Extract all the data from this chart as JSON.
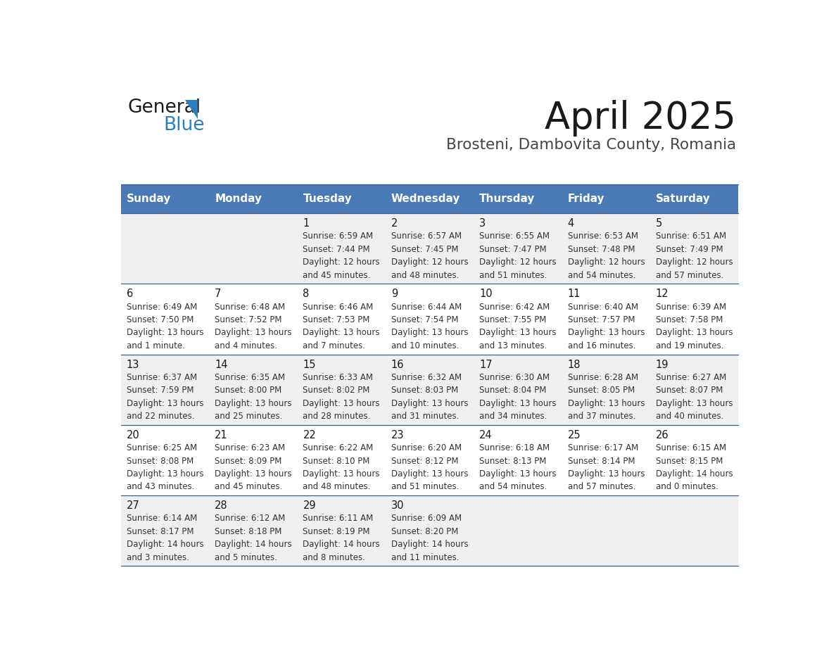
{
  "title": "April 2025",
  "subtitle": "Brosteni, Dambovita County, Romania",
  "header_bg": "#4a7ab5",
  "header_text": "#ffffff",
  "weekdays": [
    "Sunday",
    "Monday",
    "Tuesday",
    "Wednesday",
    "Thursday",
    "Friday",
    "Saturday"
  ],
  "row_bg_odd": "#efefef",
  "row_bg_even": "#ffffff",
  "cell_border": "#3a6090",
  "days": [
    {
      "day": 1,
      "col": 2,
      "row": 0,
      "sunrise": "6:59 AM",
      "sunset": "7:44 PM",
      "dl1": "Daylight: 12 hours",
      "dl2": "and 45 minutes."
    },
    {
      "day": 2,
      "col": 3,
      "row": 0,
      "sunrise": "6:57 AM",
      "sunset": "7:45 PM",
      "dl1": "Daylight: 12 hours",
      "dl2": "and 48 minutes."
    },
    {
      "day": 3,
      "col": 4,
      "row": 0,
      "sunrise": "6:55 AM",
      "sunset": "7:47 PM",
      "dl1": "Daylight: 12 hours",
      "dl2": "and 51 minutes."
    },
    {
      "day": 4,
      "col": 5,
      "row": 0,
      "sunrise": "6:53 AM",
      "sunset": "7:48 PM",
      "dl1": "Daylight: 12 hours",
      "dl2": "and 54 minutes."
    },
    {
      "day": 5,
      "col": 6,
      "row": 0,
      "sunrise": "6:51 AM",
      "sunset": "7:49 PM",
      "dl1": "Daylight: 12 hours",
      "dl2": "and 57 minutes."
    },
    {
      "day": 6,
      "col": 0,
      "row": 1,
      "sunrise": "6:49 AM",
      "sunset": "7:50 PM",
      "dl1": "Daylight: 13 hours",
      "dl2": "and 1 minute."
    },
    {
      "day": 7,
      "col": 1,
      "row": 1,
      "sunrise": "6:48 AM",
      "sunset": "7:52 PM",
      "dl1": "Daylight: 13 hours",
      "dl2": "and 4 minutes."
    },
    {
      "day": 8,
      "col": 2,
      "row": 1,
      "sunrise": "6:46 AM",
      "sunset": "7:53 PM",
      "dl1": "Daylight: 13 hours",
      "dl2": "and 7 minutes."
    },
    {
      "day": 9,
      "col": 3,
      "row": 1,
      "sunrise": "6:44 AM",
      "sunset": "7:54 PM",
      "dl1": "Daylight: 13 hours",
      "dl2": "and 10 minutes."
    },
    {
      "day": 10,
      "col": 4,
      "row": 1,
      "sunrise": "6:42 AM",
      "sunset": "7:55 PM",
      "dl1": "Daylight: 13 hours",
      "dl2": "and 13 minutes."
    },
    {
      "day": 11,
      "col": 5,
      "row": 1,
      "sunrise": "6:40 AM",
      "sunset": "7:57 PM",
      "dl1": "Daylight: 13 hours",
      "dl2": "and 16 minutes."
    },
    {
      "day": 12,
      "col": 6,
      "row": 1,
      "sunrise": "6:39 AM",
      "sunset": "7:58 PM",
      "dl1": "Daylight: 13 hours",
      "dl2": "and 19 minutes."
    },
    {
      "day": 13,
      "col": 0,
      "row": 2,
      "sunrise": "6:37 AM",
      "sunset": "7:59 PM",
      "dl1": "Daylight: 13 hours",
      "dl2": "and 22 minutes."
    },
    {
      "day": 14,
      "col": 1,
      "row": 2,
      "sunrise": "6:35 AM",
      "sunset": "8:00 PM",
      "dl1": "Daylight: 13 hours",
      "dl2": "and 25 minutes."
    },
    {
      "day": 15,
      "col": 2,
      "row": 2,
      "sunrise": "6:33 AM",
      "sunset": "8:02 PM",
      "dl1": "Daylight: 13 hours",
      "dl2": "and 28 minutes."
    },
    {
      "day": 16,
      "col": 3,
      "row": 2,
      "sunrise": "6:32 AM",
      "sunset": "8:03 PM",
      "dl1": "Daylight: 13 hours",
      "dl2": "and 31 minutes."
    },
    {
      "day": 17,
      "col": 4,
      "row": 2,
      "sunrise": "6:30 AM",
      "sunset": "8:04 PM",
      "dl1": "Daylight: 13 hours",
      "dl2": "and 34 minutes."
    },
    {
      "day": 18,
      "col": 5,
      "row": 2,
      "sunrise": "6:28 AM",
      "sunset": "8:05 PM",
      "dl1": "Daylight: 13 hours",
      "dl2": "and 37 minutes."
    },
    {
      "day": 19,
      "col": 6,
      "row": 2,
      "sunrise": "6:27 AM",
      "sunset": "8:07 PM",
      "dl1": "Daylight: 13 hours",
      "dl2": "and 40 minutes."
    },
    {
      "day": 20,
      "col": 0,
      "row": 3,
      "sunrise": "6:25 AM",
      "sunset": "8:08 PM",
      "dl1": "Daylight: 13 hours",
      "dl2": "and 43 minutes."
    },
    {
      "day": 21,
      "col": 1,
      "row": 3,
      "sunrise": "6:23 AM",
      "sunset": "8:09 PM",
      "dl1": "Daylight: 13 hours",
      "dl2": "and 45 minutes."
    },
    {
      "day": 22,
      "col": 2,
      "row": 3,
      "sunrise": "6:22 AM",
      "sunset": "8:10 PM",
      "dl1": "Daylight: 13 hours",
      "dl2": "and 48 minutes."
    },
    {
      "day": 23,
      "col": 3,
      "row": 3,
      "sunrise": "6:20 AM",
      "sunset": "8:12 PM",
      "dl1": "Daylight: 13 hours",
      "dl2": "and 51 minutes."
    },
    {
      "day": 24,
      "col": 4,
      "row": 3,
      "sunrise": "6:18 AM",
      "sunset": "8:13 PM",
      "dl1": "Daylight: 13 hours",
      "dl2": "and 54 minutes."
    },
    {
      "day": 25,
      "col": 5,
      "row": 3,
      "sunrise": "6:17 AM",
      "sunset": "8:14 PM",
      "dl1": "Daylight: 13 hours",
      "dl2": "and 57 minutes."
    },
    {
      "day": 26,
      "col": 6,
      "row": 3,
      "sunrise": "6:15 AM",
      "sunset": "8:15 PM",
      "dl1": "Daylight: 14 hours",
      "dl2": "and 0 minutes."
    },
    {
      "day": 27,
      "col": 0,
      "row": 4,
      "sunrise": "6:14 AM",
      "sunset": "8:17 PM",
      "dl1": "Daylight: 14 hours",
      "dl2": "and 3 minutes."
    },
    {
      "day": 28,
      "col": 1,
      "row": 4,
      "sunrise": "6:12 AM",
      "sunset": "8:18 PM",
      "dl1": "Daylight: 14 hours",
      "dl2": "and 5 minutes."
    },
    {
      "day": 29,
      "col": 2,
      "row": 4,
      "sunrise": "6:11 AM",
      "sunset": "8:19 PM",
      "dl1": "Daylight: 14 hours",
      "dl2": "and 8 minutes."
    },
    {
      "day": 30,
      "col": 3,
      "row": 4,
      "sunrise": "6:09 AM",
      "sunset": "8:20 PM",
      "dl1": "Daylight: 14 hours",
      "dl2": "and 11 minutes."
    }
  ]
}
